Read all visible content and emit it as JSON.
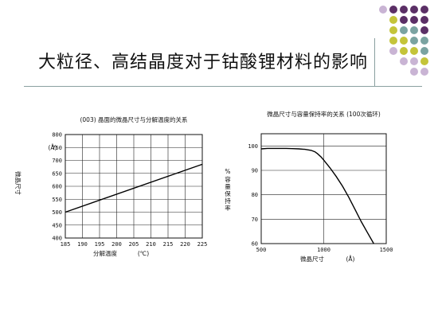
{
  "title": "大粒径、高结晶度对于钴酸锂材料的影响",
  "decoration": {
    "dot_colors": [
      "#5b2f66",
      "#c4c43a",
      "#7aa3a1",
      "#c9b4d4"
    ]
  },
  "chart_data": [
    {
      "type": "line",
      "title": "(003) 晶面的微晶尺寸与分解温度的关系",
      "xlabel": "分解温度",
      "xunit": "(℃)",
      "ylabel": "微晶尺寸",
      "yunit": "(Å)",
      "xlim": [
        185,
        225
      ],
      "ylim": [
        400,
        800
      ],
      "xticks": [
        185,
        190,
        195,
        200,
        205,
        210,
        215,
        220,
        225
      ],
      "yticks": [
        400,
        450,
        500,
        550,
        600,
        650,
        700,
        750,
        800
      ],
      "grid": true,
      "series": [
        {
          "x": [
            185,
            225
          ],
          "y": [
            500,
            685
          ]
        }
      ]
    },
    {
      "type": "line",
      "title": "微晶尺寸与容量保持率的关系 (100次循环)",
      "xlabel": "微晶尺寸",
      "xunit": "(Å)",
      "ylabel": "容量保持率",
      "yunit": "%",
      "xlim": [
        500,
        1500
      ],
      "ylim": [
        60,
        105
      ],
      "xticks": [
        500,
        1000,
        1500
      ],
      "yticks": [
        60,
        70,
        80,
        90,
        100
      ],
      "grid": true,
      "series": [
        {
          "x": [
            500,
            550,
            600,
            650,
            700,
            750,
            800,
            850,
            900,
            930,
            950,
            980,
            1000,
            1050,
            1100,
            1150,
            1200,
            1250,
            1300,
            1350,
            1400
          ],
          "y": [
            98.8,
            99,
            99,
            99,
            99,
            98.9,
            98.8,
            98.6,
            98.2,
            97.6,
            96.8,
            95.4,
            94.2,
            91,
            87.5,
            83.5,
            79,
            74,
            69,
            64.5,
            60
          ]
        }
      ]
    }
  ]
}
